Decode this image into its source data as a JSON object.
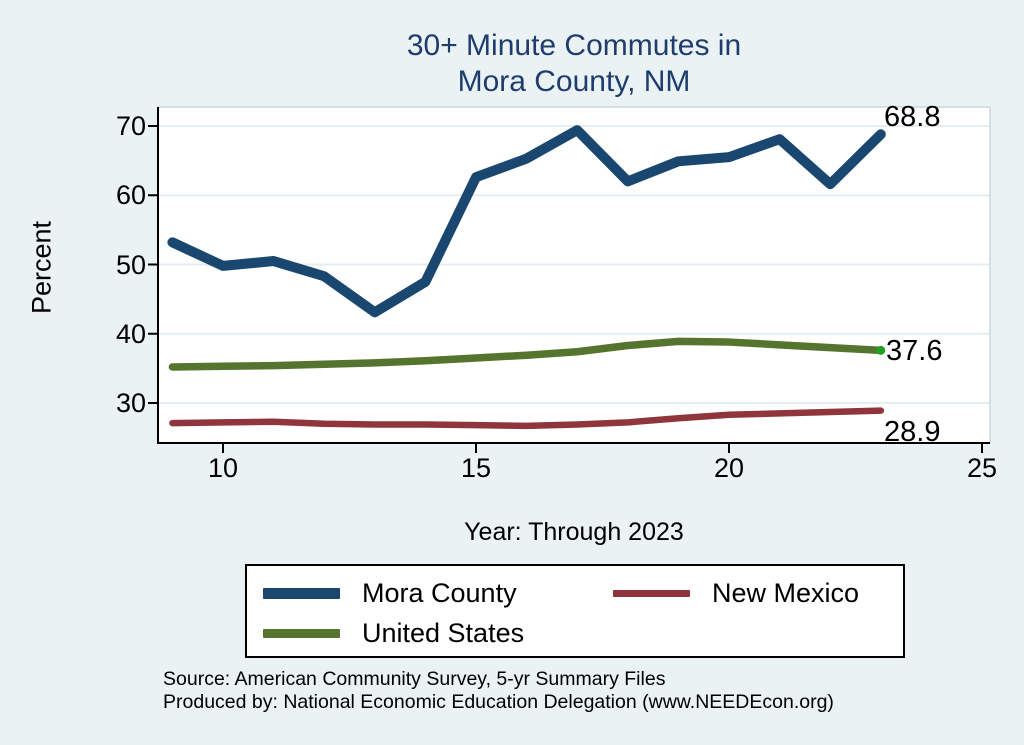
{
  "chart_data": {
    "type": "line",
    "title_line1": "30+ Minute Commutes in",
    "title_line2": "Mora County, NM",
    "ylabel": "Percent",
    "xlabel": "Year: Through 2023",
    "grid": true,
    "legend_position": "bottom",
    "xlim": [
      8.7,
      25.2
    ],
    "ylim": [
      24.3,
      72.9
    ],
    "x": [
      9,
      10,
      11,
      12,
      13,
      14,
      15,
      16,
      17,
      18,
      19,
      20,
      21,
      22,
      23
    ],
    "xticks": [
      10,
      15,
      20,
      25
    ],
    "xtick_labels": [
      "10",
      "15",
      "20",
      "25"
    ],
    "yticks": [
      70,
      60,
      50,
      40,
      30
    ],
    "ytick_labels": [
      "70",
      "60",
      "50",
      "40",
      "30"
    ],
    "series": [
      {
        "name": "Mora County",
        "color": "#1a476f",
        "line_width": 10,
        "end_label": "68.8",
        "values": [
          53.2,
          49.8,
          50.5,
          48.3,
          43.1,
          47.5,
          62.6,
          65.3,
          69.4,
          62.0,
          64.9,
          65.5,
          68.1,
          61.6,
          68.8
        ]
      },
      {
        "name": "New Mexico",
        "color": "#90353b",
        "line_width": 6.5,
        "end_label": "28.9",
        "values": [
          27.1,
          27.2,
          27.3,
          27.0,
          26.9,
          26.9,
          26.8,
          26.7,
          26.9,
          27.2,
          27.8,
          28.3,
          28.5,
          28.7,
          28.9
        ]
      },
      {
        "name": "United States",
        "color": "#55752f",
        "line_width": 7.5,
        "end_label": "37.6",
        "end_marker_color": "#22a022",
        "values": [
          35.2,
          35.3,
          35.4,
          35.6,
          35.8,
          36.1,
          36.5,
          36.9,
          37.4,
          38.3,
          38.9,
          38.8,
          38.4,
          38.0,
          37.6
        ]
      }
    ]
  },
  "footer": {
    "source_line1": "Source: American Community Survey, 5-yr Summary Files",
    "source_line2": "Produced by: National Economic Education Delegation (www.NEEDEcon.org)"
  },
  "colors": {
    "background": "#eaf2f3",
    "plot_background": "#ffffff",
    "gridline": "#e4eef0",
    "plot_border": "#c9d8dc",
    "axis": "#000000",
    "title": "#1e3c6e",
    "mora_county": "#1a476f",
    "new_mexico": "#90353b",
    "united_states": "#55752f",
    "us_end_marker": "#22a022"
  }
}
